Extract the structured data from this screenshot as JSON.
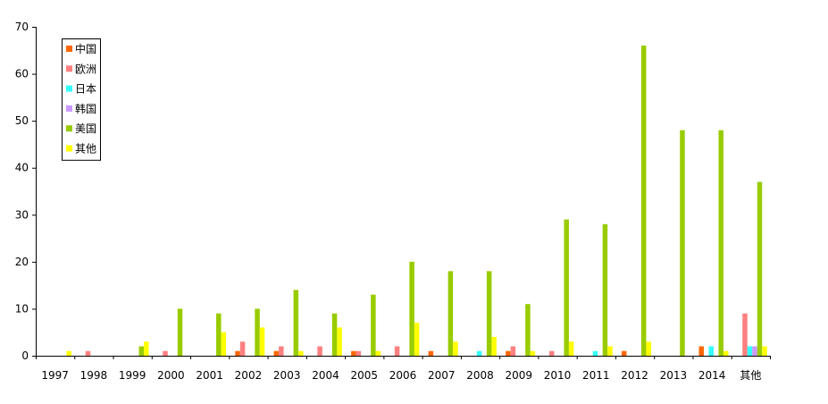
{
  "chart_data": {
    "type": "bar",
    "categories": [
      "1997",
      "1998",
      "1999",
      "2000",
      "2001",
      "2002",
      "2003",
      "2004",
      "2005",
      "2006",
      "2007",
      "2008",
      "2009",
      "2010",
      "2011",
      "2012",
      "2013",
      "2014",
      "其他"
    ],
    "series": [
      {
        "name": "中国",
        "color": "#ff6600",
        "values": [
          0,
          0,
          0,
          0,
          0,
          1,
          1,
          0,
          1,
          0,
          1,
          0,
          1,
          0,
          0,
          1,
          0,
          2,
          0
        ]
      },
      {
        "name": "欧洲",
        "color": "#ff8080",
        "values": [
          0,
          1,
          0,
          1,
          0,
          3,
          2,
          2,
          1,
          2,
          0,
          0,
          2,
          1,
          0,
          0,
          0,
          0,
          9
        ]
      },
      {
        "name": "日本",
        "color": "#33ffff",
        "values": [
          0,
          0,
          0,
          0,
          0,
          0,
          0,
          0,
          0,
          0,
          0,
          1,
          0,
          0,
          1,
          0,
          0,
          2,
          2
        ]
      },
      {
        "name": "韩国",
        "color": "#cc99ff",
        "values": [
          0,
          0,
          0,
          0,
          0,
          0,
          0,
          0,
          0,
          0,
          0,
          0,
          0,
          0,
          0,
          0,
          0,
          0,
          2
        ]
      },
      {
        "name": "美国",
        "color": "#99cc00",
        "values": [
          0,
          0,
          2,
          10,
          9,
          10,
          14,
          9,
          13,
          20,
          18,
          18,
          11,
          29,
          28,
          66,
          48,
          48,
          37
        ]
      },
      {
        "name": "其他",
        "color": "#ffff00",
        "values": [
          1,
          0,
          3,
          0,
          5,
          6,
          1,
          6,
          1,
          7,
          3,
          4,
          1,
          3,
          2,
          3,
          0,
          1,
          2
        ]
      }
    ],
    "ylim": [
      0,
      70
    ],
    "yticks": [
      "0",
      "10",
      "20",
      "30",
      "40",
      "50",
      "60",
      "70"
    ],
    "legend_position": "top-left",
    "grid": false,
    "title": "",
    "xlabel": "",
    "ylabel": ""
  }
}
